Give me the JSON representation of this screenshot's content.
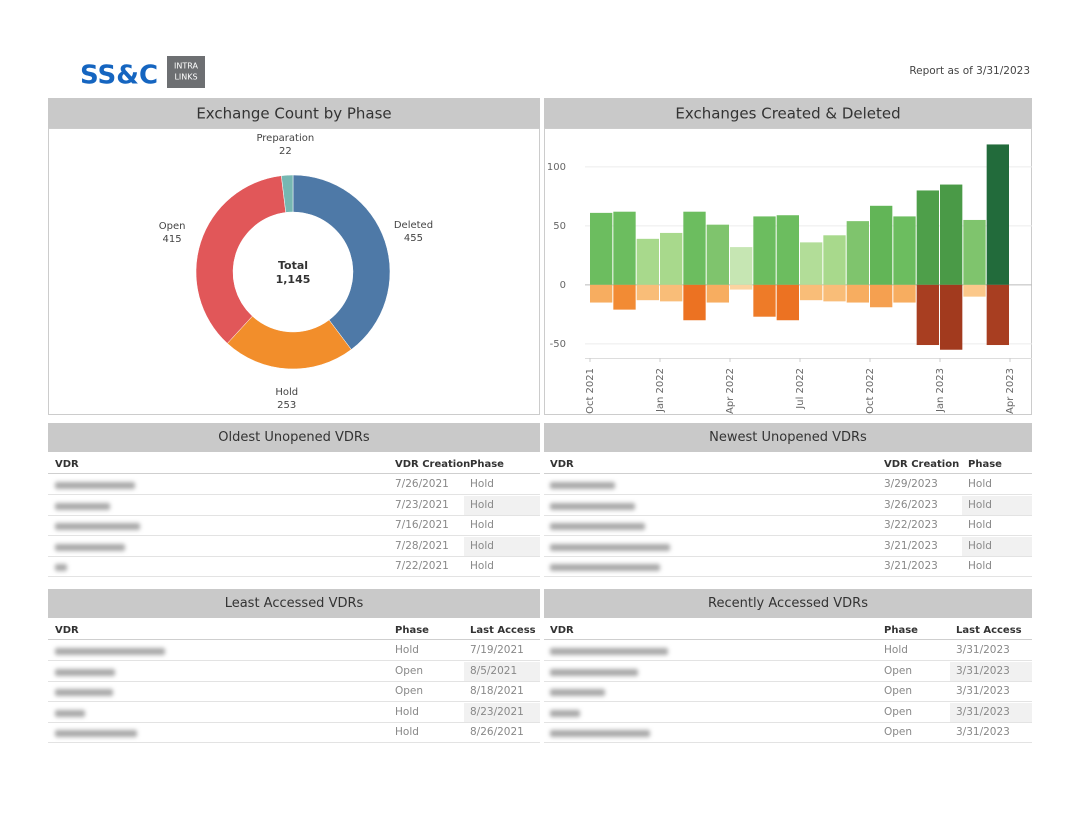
{
  "header": {
    "logo": "SS&C",
    "logo_badge": [
      "INTRA",
      "LINKS"
    ],
    "report_date": "Report as of 3/31/2023"
  },
  "chart_data": [
    {
      "type": "pie",
      "title": "Exchange Count by Phase",
      "categories": [
        "Deleted",
        "Hold",
        "Open",
        "Preparation"
      ],
      "values": [
        455,
        253,
        415,
        22
      ],
      "colors": [
        "#4e79a7",
        "#f28e2b",
        "#e15759",
        "#76b7b2"
      ],
      "donut": true,
      "center_label": "Total",
      "center_value": {
        "value": 1145,
        "label": "1,145"
      }
    },
    {
      "type": "bar",
      "title": "Exchanges Created & Deleted",
      "x": [
        "2021-10",
        "2021-11",
        "2021-12",
        "2022-01",
        "2022-02",
        "2022-03",
        "2022-04",
        "2022-05",
        "2022-06",
        "2022-07",
        "2022-08",
        "2022-09",
        "2022-10",
        "2022-11",
        "2022-12",
        "2023-01",
        "2023-02",
        "2023-03"
      ],
      "xlim": [
        "2021-10",
        "2023-04"
      ],
      "xticks": [
        {
          "value": "2021-10",
          "label": "Oct 2021"
        },
        {
          "value": "2022-01",
          "label": "Jan 2022"
        },
        {
          "value": "2022-04",
          "label": "Apr 2022"
        },
        {
          "value": "2022-07",
          "label": "Jul 2022"
        },
        {
          "value": "2022-10",
          "label": "Oct 2022"
        },
        {
          "value": "2023-01",
          "label": "Jan 2023"
        },
        {
          "value": "2023-04",
          "label": "Apr 2023"
        }
      ],
      "ylim": [
        -62,
        127
      ],
      "yticks": [
        -50,
        0,
        50,
        100
      ],
      "grid": true,
      "series": [
        {
          "values": [
            61,
            62,
            39,
            44,
            62,
            51,
            32,
            58,
            59,
            36,
            42,
            54,
            67,
            58,
            80,
            85,
            55,
            119
          ],
          "colors": [
            "#6cbd5f",
            "#6cbd5f",
            "#a8d98c",
            "#a8d98c",
            "#6cbd5f",
            "#7fc46d",
            "#c6e6b3",
            "#6cbd5f",
            "#6cbd5f",
            "#b2dd98",
            "#a8d98c",
            "#7fc46d",
            "#62b557",
            "#6cbd5f",
            "#4e9f4a",
            "#4a9a47",
            "#7fc46d",
            "#226b3b"
          ]
        },
        {
          "values": [
            -15,
            -21,
            -13,
            -14,
            -30,
            -15,
            -4,
            -27,
            -30,
            -13,
            -14,
            -15,
            -19,
            -15,
            -51,
            -55,
            -10,
            -51
          ],
          "colors": [
            "#f7ad60",
            "#f28b34",
            "#f9bd78",
            "#f9bd78",
            "#ec7222",
            "#f7ad60",
            "#fbd3a0",
            "#ee7b28",
            "#ec7222",
            "#f9bd78",
            "#f9bd78",
            "#f7ad60",
            "#f5a050",
            "#f7ad60",
            "#a83e21",
            "#a23a1e",
            "#fbc88a",
            "#a83e21"
          ]
        }
      ]
    }
  ],
  "tables": [
    {
      "title": "Oldest Unopened VDRs",
      "columns": [
        "VDR",
        "VDR Creation",
        "Phase"
      ],
      "rows": [
        [
          "7/26/2021",
          "Hold"
        ],
        [
          "7/23/2021",
          "Hold"
        ],
        [
          "7/16/2021",
          "Hold"
        ],
        [
          "7/28/2021",
          "Hold"
        ],
        [
          "7/22/2021",
          "Hold"
        ]
      ]
    },
    {
      "title": "Newest Unopened VDRs",
      "columns": [
        "VDR",
        "VDR Creation",
        "Phase"
      ],
      "rows": [
        [
          "3/29/2023",
          "Hold"
        ],
        [
          "3/26/2023",
          "Hold"
        ],
        [
          "3/22/2023",
          "Hold"
        ],
        [
          "3/21/2023",
          "Hold"
        ],
        [
          "3/21/2023",
          "Hold"
        ]
      ]
    },
    {
      "title": "Least Accessed VDRs",
      "columns": [
        "VDR",
        "Phase",
        "Last Access"
      ],
      "rows": [
        [
          "Hold",
          "7/19/2021"
        ],
        [
          "Open",
          "8/5/2021"
        ],
        [
          "Open",
          "8/18/2021"
        ],
        [
          "Hold",
          "8/23/2021"
        ],
        [
          "Hold",
          "8/26/2021"
        ]
      ]
    },
    {
      "title": "Recently Accessed VDRs",
      "columns": [
        "VDR",
        "Phase",
        "Last Access"
      ],
      "rows": [
        [
          "Hold",
          "3/31/2023"
        ],
        [
          "Open",
          "3/31/2023"
        ],
        [
          "Open",
          "3/31/2023"
        ],
        [
          "Open",
          "3/31/2023"
        ],
        [
          "Open",
          "3/31/2023"
        ]
      ]
    }
  ]
}
